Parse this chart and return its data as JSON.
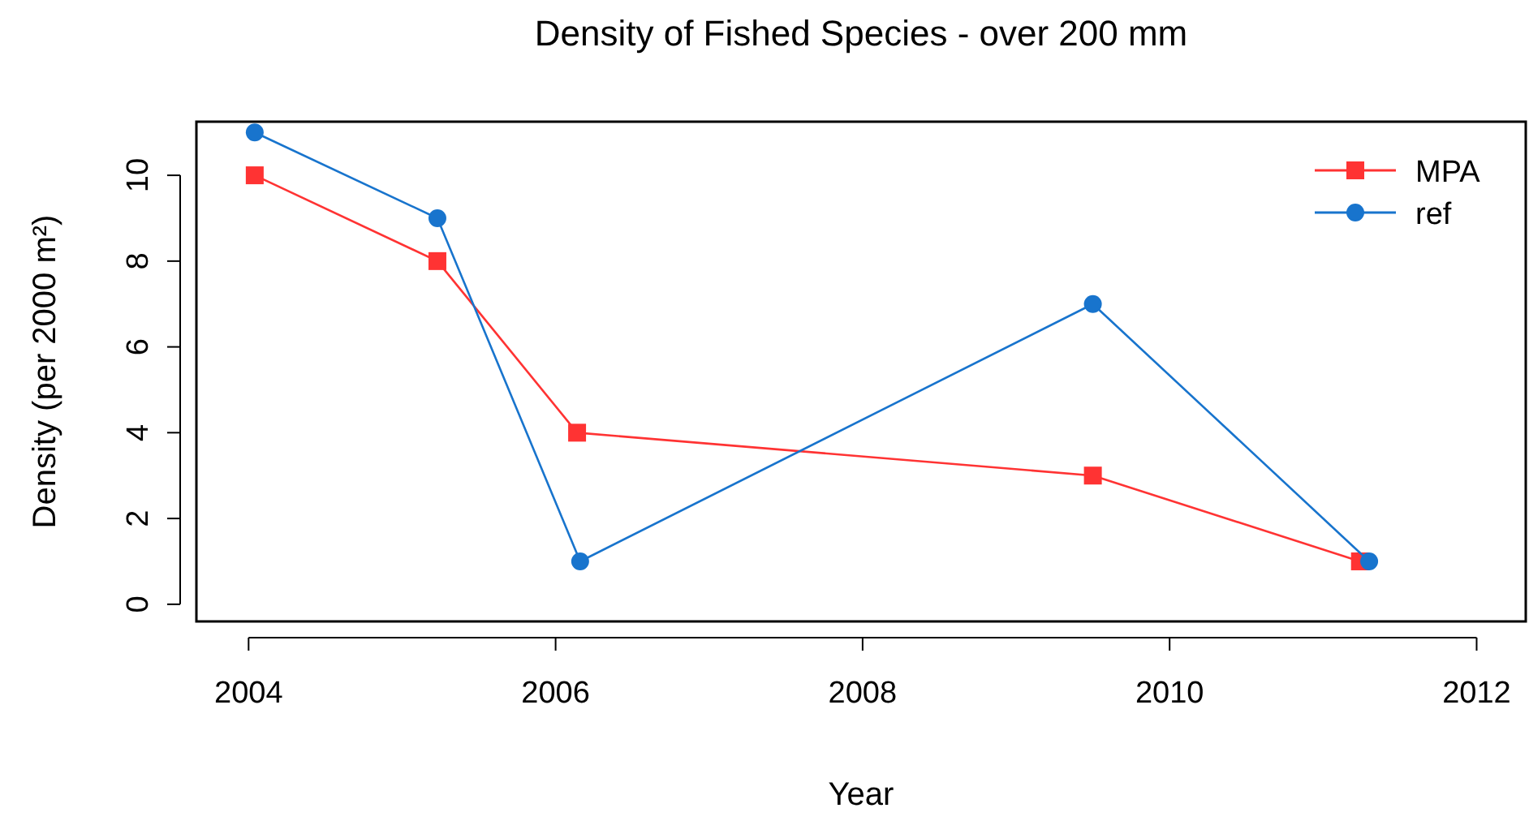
{
  "chart_data": {
    "type": "line",
    "title": "Density of Fished Species - over 200 mm",
    "xlabel": "Year",
    "ylabel": "Density (per 2000 m²)",
    "xlim": [
      2003.66,
      2012.32
    ],
    "xticks": [
      2004,
      2006,
      2008,
      2010,
      2012
    ],
    "ylim": [
      -0.4,
      11.25
    ],
    "yticks": [
      0,
      2,
      4,
      6,
      8,
      10
    ],
    "legend": "top right",
    "grid": false,
    "line_style": "solid",
    "series": [
      {
        "name": "MPA",
        "color": "#ff3333",
        "marker": "square",
        "x": [
          2004.04,
          2005.23,
          2006.14,
          2009.5,
          2011.24
        ],
        "values": [
          10,
          8,
          4,
          3,
          1
        ]
      },
      {
        "name": "ref",
        "color": "#1874cd",
        "marker": "circle",
        "x": [
          2004.04,
          2005.23,
          2006.16,
          2009.5,
          2011.3
        ],
        "values": [
          11,
          9,
          1,
          7,
          1
        ]
      }
    ]
  }
}
